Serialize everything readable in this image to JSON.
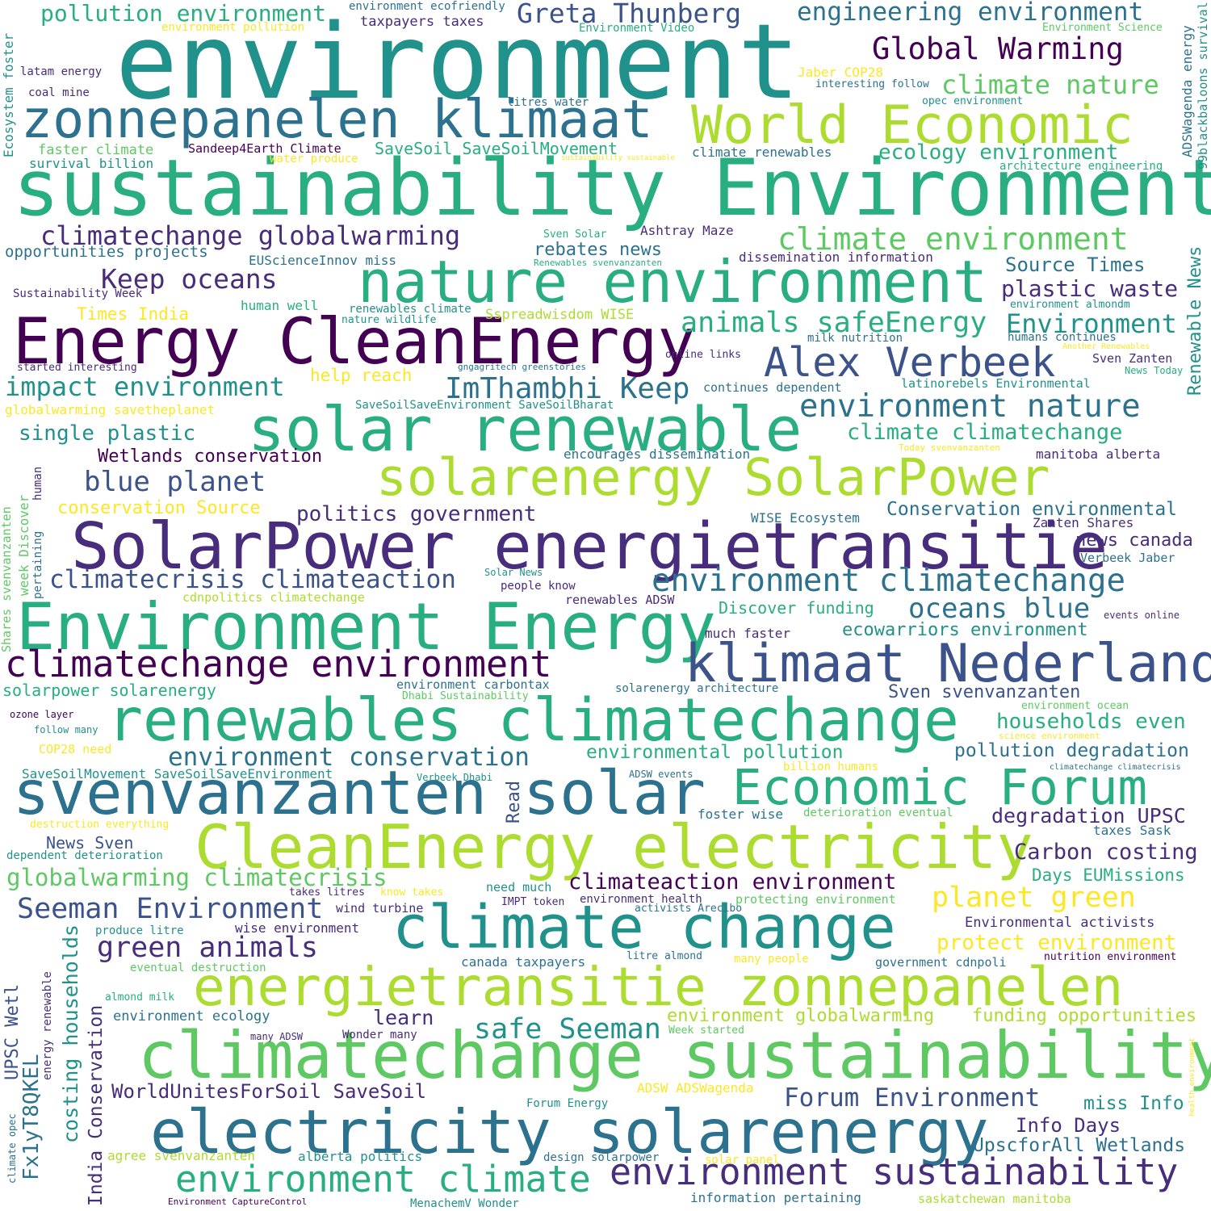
{
  "palette": {
    "c1": "#440154",
    "c2": "#472d7b",
    "c3": "#3b528b",
    "c4": "#2c728e",
    "c5": "#21918c",
    "c6": "#28ae80",
    "c7": "#5ec962",
    "c8": "#addc30",
    "c9": "#fde725",
    "background": "#ffffff"
  },
  "words": [
    {
      "text": "environment",
      "color": "c5"
    },
    {
      "text": "sustainability Environment",
      "color": "c6"
    },
    {
      "text": "Energy CleanEnergy",
      "color": "c1"
    },
    {
      "text": "SolarPower energietransitie",
      "color": "c2"
    },
    {
      "text": "Environment Energy",
      "color": "c6"
    },
    {
      "text": "renewables climatechange",
      "color": "c6"
    },
    {
      "text": "solar renewable",
      "color": "c6"
    },
    {
      "text": "nature environment",
      "color": "c6"
    },
    {
      "text": "svenvanzanten solar",
      "color": "c4"
    },
    {
      "text": "CleanEnergy electricity",
      "color": "c8"
    },
    {
      "text": "climatechange sustainability",
      "color": "c7"
    },
    {
      "text": "electricity solarenergy",
      "color": "c4"
    },
    {
      "text": "energietransitie zonnepanelen",
      "color": "c8"
    },
    {
      "text": "climate change",
      "color": "c5"
    },
    {
      "text": "zonnepanelen klimaat",
      "color": "c4"
    },
    {
      "text": "World Economic",
      "color": "c8"
    },
    {
      "text": "solarenergy SolarPower",
      "color": "c8"
    },
    {
      "text": "klimaat Nederland",
      "color": "c3"
    },
    {
      "text": "Economic Forum",
      "color": "c6"
    },
    {
      "text": "climatechange environment",
      "color": "c1"
    },
    {
      "text": "Alex Verbeek",
      "color": "c3"
    },
    {
      "text": "environment sustainability",
      "color": "c2"
    },
    {
      "text": "environment climate",
      "color": "c6"
    },
    {
      "text": "environment climatechange",
      "color": "c4"
    },
    {
      "text": "environment nature",
      "color": "c4"
    },
    {
      "text": "Greta Thunberg",
      "color": "c3"
    },
    {
      "text": "engineering environment",
      "color": "c4"
    },
    {
      "text": "Global Warming",
      "color": "c1"
    },
    {
      "text": "climate nature",
      "color": "c7"
    },
    {
      "text": "climate environment",
      "color": "c7"
    },
    {
      "text": "pollution environment",
      "color": "c6"
    },
    {
      "text": "climatechange globalwarming",
      "color": "c2"
    },
    {
      "text": "Keep oceans",
      "color": "c2"
    },
    {
      "text": "animals safeEnergy",
      "color": "c6"
    },
    {
      "text": "Environment",
      "color": "c5"
    },
    {
      "text": "impact environment",
      "color": "c5"
    },
    {
      "text": "ImThambhi Keep",
      "color": "c4"
    },
    {
      "text": "climatecrisis climateaction",
      "color": "c3"
    },
    {
      "text": "blue planet",
      "color": "c3"
    },
    {
      "text": "oceans blue",
      "color": "c4"
    },
    {
      "text": "environment conservation",
      "color": "c4"
    },
    {
      "text": "globalwarming climatecrisis",
      "color": "c7"
    },
    {
      "text": "Seeman Environment",
      "color": "c3"
    },
    {
      "text": "green animals",
      "color": "c2"
    },
    {
      "text": "planet green",
      "color": "c9"
    },
    {
      "text": "safe Seeman",
      "color": "c5"
    },
    {
      "text": "Forum Environment",
      "color": "c3"
    },
    {
      "text": "climate climatechange",
      "color": "c6"
    },
    {
      "text": "ecology environment",
      "color": "c6"
    },
    {
      "text": "plastic waste",
      "color": "c2"
    },
    {
      "text": "Source Times",
      "color": "c4"
    },
    {
      "text": "single plastic",
      "color": "c5"
    },
    {
      "text": "Wetlands conservation",
      "color": "c1"
    },
    {
      "text": "conservation Source",
      "color": "c9"
    },
    {
      "text": "politics government",
      "color": "c2"
    },
    {
      "text": "Conservation environmental",
      "color": "c4"
    },
    {
      "text": "climateaction environment",
      "color": "c1"
    },
    {
      "text": "households even",
      "color": "c6"
    },
    {
      "text": "pollution degradation",
      "color": "c4"
    },
    {
      "text": "environmental pollution",
      "color": "c6"
    },
    {
      "text": "degradation UPSC",
      "color": "c2"
    },
    {
      "text": "Carbon costing",
      "color": "c2"
    },
    {
      "text": "protect environment",
      "color": "c9"
    },
    {
      "text": "ecowarriors environment",
      "color": "c5"
    },
    {
      "text": "Sven svenvanzanten",
      "color": "c3"
    },
    {
      "text": "news canada",
      "color": "c2"
    },
    {
      "text": "WorldUnitesForSoil SaveSoil",
      "color": "c2"
    },
    {
      "text": "Info Days",
      "color": "c2"
    },
    {
      "text": "UpscforAll Wetlands",
      "color": "c4"
    },
    {
      "text": "miss Info",
      "color": "c5"
    },
    {
      "text": "Days EUMissions",
      "color": "c6"
    },
    {
      "text": "environment globalwarming",
      "color": "c8"
    },
    {
      "text": "funding opportunities",
      "color": "c8"
    },
    {
      "text": "learn",
      "color": "c2"
    },
    {
      "text": "SaveSoil SaveSoilMovement",
      "color": "c6"
    },
    {
      "text": "rebates news",
      "color": "c4"
    },
    {
      "text": "help reach",
      "color": "c9"
    },
    {
      "text": "Times India",
      "color": "c9"
    },
    {
      "text": "News Sven",
      "color": "c3"
    },
    {
      "text": "Discover funding",
      "color": "c6"
    },
    {
      "text": "solarpower solarenergy",
      "color": "c6"
    },
    {
      "text": "opportunities projects",
      "color": "c4"
    },
    {
      "text": "climate renewables",
      "color": "c4"
    },
    {
      "text": "Sandeep4Earth Climate",
      "color": "c1"
    },
    {
      "text": "Ashtray Maze",
      "color": "c2"
    },
    {
      "text": "dissemination information",
      "color": "c2"
    },
    {
      "text": "EUScienceInnov miss",
      "color": "c4"
    },
    {
      "text": "human well",
      "color": "c6"
    },
    {
      "text": "Sspreadwisdom WISE",
      "color": "c8"
    },
    {
      "text": "continues dependent",
      "color": "c4"
    },
    {
      "text": "latinorebels Environmental",
      "color": "c5"
    },
    {
      "text": "encourages dissemination",
      "color": "c4"
    },
    {
      "text": "manitoba alberta",
      "color": "c2"
    },
    {
      "text": "WISE Ecosystem",
      "color": "c4"
    },
    {
      "text": "Zanten Shares",
      "color": "c2"
    },
    {
      "text": "Verbeek Jaber",
      "color": "c4"
    },
    {
      "text": "much faster",
      "color": "c2"
    },
    {
      "text": "renewables ADSW",
      "color": "c2"
    },
    {
      "text": "environment carbontax",
      "color": "c4"
    },
    {
      "text": "solarenergy architecture",
      "color": "c4"
    },
    {
      "text": "COP28 need",
      "color": "c9"
    },
    {
      "text": "SaveSoilMovement SaveSoilSaveEnvironment",
      "color": "c5"
    },
    {
      "text": "foster wise",
      "color": "c4"
    },
    {
      "text": "taxes Sask",
      "color": "c4"
    },
    {
      "text": "need much",
      "color": "c5"
    },
    {
      "text": "wind turbine",
      "color": "c2"
    },
    {
      "text": "wise environment",
      "color": "c2"
    },
    {
      "text": "Environmental activists",
      "color": "c2"
    },
    {
      "text": "government cdnpoli",
      "color": "c4"
    },
    {
      "text": "canada taxpayers",
      "color": "c4"
    },
    {
      "text": "many people",
      "color": "c9"
    },
    {
      "text": "environment ecology",
      "color": "c4"
    },
    {
      "text": "Wonder many",
      "color": "c2"
    },
    {
      "text": "agree svenvanzanten",
      "color": "c8"
    },
    {
      "text": "alberta politics",
      "color": "c5"
    },
    {
      "text": "design solarpower",
      "color": "c4"
    },
    {
      "text": "solar panel",
      "color": "c9"
    },
    {
      "text": "information pertaining",
      "color": "c4"
    },
    {
      "text": "saskatchewan manitoba",
      "color": "c8"
    },
    {
      "text": "MenachemV Wonder",
      "color": "c5"
    },
    {
      "text": "Environment CaptureControl",
      "color": "c1"
    },
    {
      "text": "environment ecofriendly",
      "color": "c4"
    },
    {
      "text": "taxpayers taxes",
      "color": "c2"
    },
    {
      "text": "environment pollution",
      "color": "c9"
    },
    {
      "text": "Environment Video",
      "color": "c6"
    },
    {
      "text": "Environment Science",
      "color": "c7"
    },
    {
      "text": "latam energy",
      "color": "c2"
    },
    {
      "text": "coal mine",
      "color": "c2"
    },
    {
      "text": "Jaber COP28",
      "color": "c9"
    },
    {
      "text": "interesting follow",
      "color": "c4"
    },
    {
      "text": "litres water",
      "color": "c4"
    },
    {
      "text": "opec environment",
      "color": "c5"
    },
    {
      "text": "faster climate",
      "color": "c7"
    },
    {
      "text": "survival billion",
      "color": "c5"
    },
    {
      "text": "water produce",
      "color": "c9"
    },
    {
      "text": "sustainability sustainable",
      "color": "c9"
    },
    {
      "text": "architecture engineering",
      "color": "c6"
    },
    {
      "text": "Sven Solar",
      "color": "c6"
    },
    {
      "text": "Renewables svenvanzanten",
      "color": "c6"
    },
    {
      "text": "Sustainability Week",
      "color": "c2"
    },
    {
      "text": "renewables climate",
      "color": "c5"
    },
    {
      "text": "nature wildlife",
      "color": "c5"
    },
    {
      "text": "environment almondm",
      "color": "c5"
    },
    {
      "text": "milk nutrition",
      "color": "c4"
    },
    {
      "text": "humans continues",
      "color": "c4"
    },
    {
      "text": "Another Renewables",
      "color": "c9"
    },
    {
      "text": "online links",
      "color": "c2"
    },
    {
      "text": "Sven Zanten",
      "color": "c2"
    },
    {
      "text": "News Today",
      "color": "c6"
    },
    {
      "text": "started interesting",
      "color": "c2"
    },
    {
      "text": "gngagritech greenstories",
      "color": "c4"
    },
    {
      "text": "globalwarming savetheplanet",
      "color": "c9"
    },
    {
      "text": "SaveSoilSaveEnvironment SaveSoilBharat",
      "color": "c5"
    },
    {
      "text": "Today svenvanzanten",
      "color": "c9"
    },
    {
      "text": "Solar News",
      "color": "c5"
    },
    {
      "text": "people know",
      "color": "c2"
    },
    {
      "text": "cdnpolitics climatechange",
      "color": "c8"
    },
    {
      "text": "events online",
      "color": "c2"
    },
    {
      "text": "Dhabi Sustainability",
      "color": "c7"
    },
    {
      "text": "environment ocean",
      "color": "c7"
    },
    {
      "text": "science environment",
      "color": "c9"
    },
    {
      "text": "ozone layer",
      "color": "c1"
    },
    {
      "text": "follow many",
      "color": "c5"
    },
    {
      "text": "billion humans",
      "color": "c9"
    },
    {
      "text": "climatechange climatecrisis",
      "color": "c4"
    },
    {
      "text": "Verbeek Dhabi",
      "color": "c5"
    },
    {
      "text": "ADSW events",
      "color": "c4"
    },
    {
      "text": "deterioration eventual",
      "color": "c7"
    },
    {
      "text": "destruction everything",
      "color": "c9"
    },
    {
      "text": "dependent deterioration",
      "color": "c5"
    },
    {
      "text": "takes litres",
      "color": "c2"
    },
    {
      "text": "know takes",
      "color": "c9"
    },
    {
      "text": "IMPT token",
      "color": "c2"
    },
    {
      "text": "environment health",
      "color": "c2"
    },
    {
      "text": "activists Arecibo",
      "color": "c4"
    },
    {
      "text": "protecting environment",
      "color": "c7"
    },
    {
      "text": "produce litre",
      "color": "c5"
    },
    {
      "text": "eventual destruction",
      "color": "c7"
    },
    {
      "text": "litre almond",
      "color": "c4"
    },
    {
      "text": "nutrition environment",
      "color": "c1"
    },
    {
      "text": "almond milk",
      "color": "c6"
    },
    {
      "text": "Week started",
      "color": "c7"
    },
    {
      "text": "many ADSW",
      "color": "c2"
    },
    {
      "text": "ADSW ADSWagenda",
      "color": "c9"
    },
    {
      "text": "Forum Energy",
      "color": "c5"
    },
    {
      "text": "Ecosystem foster",
      "color": "c5",
      "vertical": true
    },
    {
      "text": "ADSWagenda energy",
      "color": "c4",
      "vertical": true
    },
    {
      "text": "99blackbaloons survival",
      "color": "c5",
      "vertical": true
    },
    {
      "text": "Renewable News",
      "color": "c5",
      "vertical": true
    },
    {
      "text": "week Discover",
      "color": "c7",
      "vertical": true
    },
    {
      "text": "human",
      "color": "c2",
      "vertical": true
    },
    {
      "text": "pertaining",
      "color": "c4",
      "vertical": true
    },
    {
      "text": "Shares svenvanzanten",
      "color": "c7",
      "vertical": true
    },
    {
      "text": "Read",
      "color": "c3",
      "vertical": true
    },
    {
      "text": "UPSC Wetl",
      "color": "c3",
      "vertical": true
    },
    {
      "text": "Fx1yT8QKEL",
      "color": "c4",
      "vertical": true
    },
    {
      "text": "energy renewable",
      "color": "c2",
      "vertical": true
    },
    {
      "text": "costing households",
      "color": "c5",
      "vertical": true
    },
    {
      "text": "India Conservation",
      "color": "c2",
      "vertical": true
    },
    {
      "text": "climate opec",
      "color": "c4",
      "vertical": true
    },
    {
      "text": "health environment",
      "color": "c9",
      "vertical": true
    }
  ]
}
